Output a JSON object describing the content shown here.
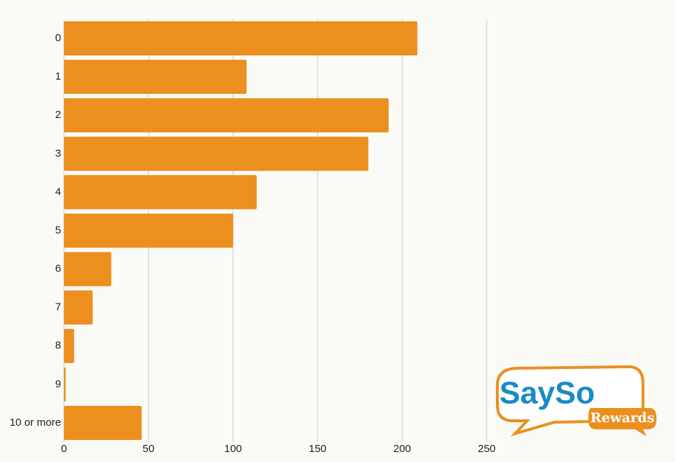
{
  "chart_data": {
    "type": "bar",
    "orientation": "horizontal",
    "categories": [
      "0",
      "1",
      "2",
      "3",
      "4",
      "5",
      "6",
      "7",
      "8",
      "9",
      "10 or more"
    ],
    "values": [
      209,
      108,
      192,
      180,
      114,
      100,
      28,
      17,
      6,
      1,
      46
    ],
    "color": "#ec8f1f",
    "xlim": [
      0,
      250
    ],
    "xticks": [
      0,
      50,
      100,
      150,
      200,
      250
    ],
    "grid": true
  },
  "logo": {
    "brand": "SaySo",
    "tagline": "Rewards"
  }
}
